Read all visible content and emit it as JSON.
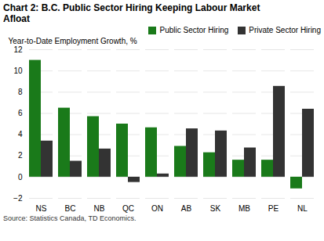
{
  "chart_data": {
    "type": "bar",
    "title": "Chart 2: B.C. Public Sector Hiring Keeping Labour Market\nAfloat",
    "ylabel": "Year-to-Date Employment Growth, %",
    "source": "Source:  Statistics Canada, TD Economics.",
    "categories": [
      "NS",
      "BC",
      "NB",
      "QC",
      "ON",
      "AB",
      "SK",
      "MB",
      "PE",
      "NL"
    ],
    "series": [
      {
        "name": "Public Sector Hiring",
        "color": "#1a7a1a",
        "values": [
          11.0,
          6.5,
          5.7,
          5.0,
          4.65,
          2.9,
          2.3,
          1.6,
          1.6,
          -1.1
        ]
      },
      {
        "name": "Private Sector Hiring",
        "color": "#333333",
        "values": [
          3.4,
          1.5,
          2.65,
          -0.5,
          0.3,
          4.55,
          4.35,
          2.75,
          8.55,
          6.4
        ]
      }
    ],
    "ylim": [
      -2,
      12
    ],
    "yticks": [
      -2,
      0,
      2,
      4,
      6,
      8,
      10,
      12
    ],
    "grid": true,
    "legend": "upper right"
  }
}
